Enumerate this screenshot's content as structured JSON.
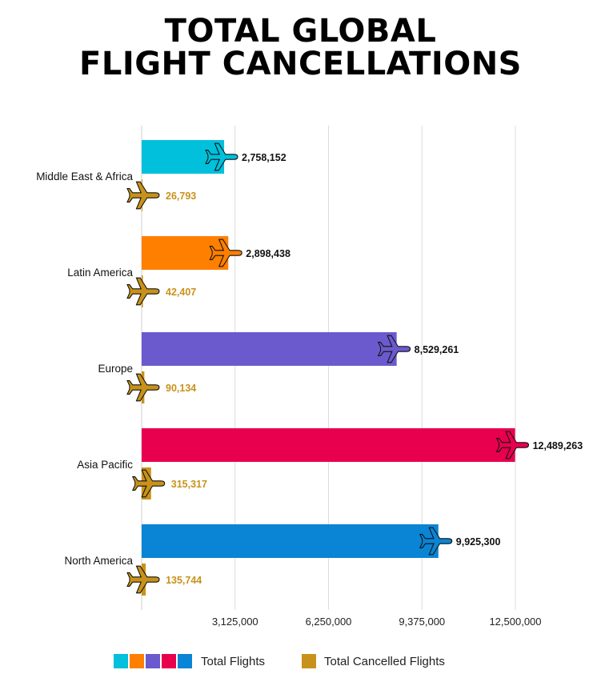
{
  "title_line1": "TOTAL GLOBAL",
  "title_line2": "FLIGHT CANCELLATIONS",
  "chart_data": {
    "type": "bar",
    "orientation": "horizontal",
    "categories": [
      "Middle East & Africa",
      "Latin America",
      "Europe",
      "Asia Pacific",
      "North America"
    ],
    "series": [
      {
        "name": "Total Flights",
        "values": [
          2758152,
          2898438,
          8529261,
          12489263,
          9925300
        ],
        "labels": [
          "2,758,152",
          "2,898,438",
          "8,529,261",
          "12,489,263",
          "9,925,300"
        ],
        "colors": [
          "#00c0dc",
          "#ff7f00",
          "#6a5acd",
          "#e8004f",
          "#0a84d4"
        ]
      },
      {
        "name": "Total Cancelled Flights",
        "values": [
          26793,
          42407,
          90134,
          315317,
          135744
        ],
        "labels": [
          "26,793",
          "42,407",
          "90,134",
          "315,317",
          "135,744"
        ],
        "color": "#c8921a"
      }
    ],
    "xlim": [
      0,
      12500000
    ],
    "x_ticks": [
      3125000,
      6250000,
      9375000,
      12500000
    ],
    "x_tick_labels": [
      "3,125,000",
      "6,250,000",
      "9,375,000",
      "12,500,000"
    ],
    "grid": true,
    "legend_position": "bottom"
  },
  "legend": {
    "total_flights_label": "Total Flights",
    "cancelled_label": "Total Cancelled Flights",
    "swatch_colors": [
      "#00c0dc",
      "#ff7f00",
      "#6a5acd",
      "#e8004f",
      "#0a84d4"
    ],
    "cancelled_color": "#c8921a"
  }
}
